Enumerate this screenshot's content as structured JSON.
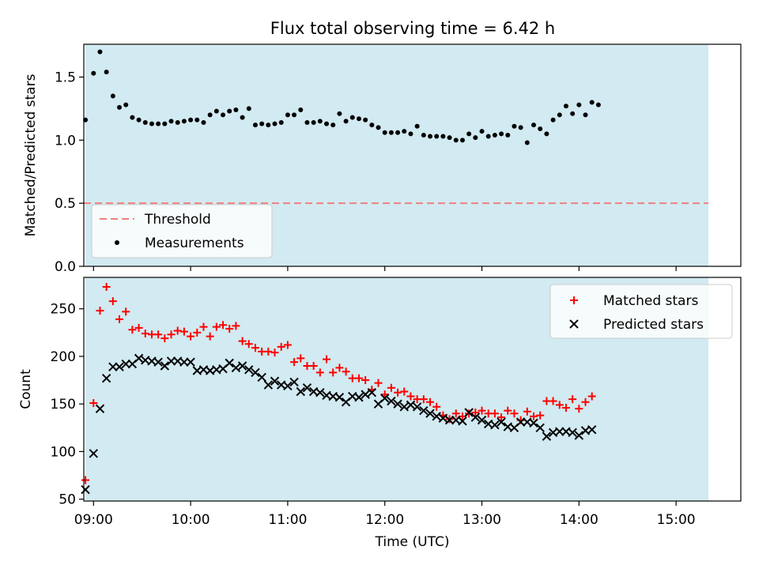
{
  "title": "Flux total observing time = 6.42 h",
  "colors": {
    "shade": "#add8e6",
    "threshold": "#f08080",
    "measurement": "#000000",
    "matched": "#ff0000",
    "predicted": "#000000"
  },
  "chart_data": [
    {
      "type": "scatter",
      "panel": "top",
      "xlabel": "",
      "ylabel": "Matched/Predicted stars",
      "xlim": [
        "08:54",
        "15:40"
      ],
      "ylim": [
        0,
        1.76
      ],
      "yticks": [
        "0.0",
        "0.5",
        "1.0",
        "1.5"
      ],
      "ytick_values": [
        0,
        0.5,
        1.0,
        1.5
      ],
      "grid": false,
      "shaded_span": [
        "08:55",
        "15:20"
      ],
      "legend_position": "lower-left",
      "threshold": {
        "name": "Threshold",
        "value": 0.5,
        "style": "dashed"
      },
      "series": [
        {
          "name": "Measurements",
          "marker": "dot",
          "points": [
            [
              "08:55",
              1.16
            ],
            [
              "09:00",
              1.53
            ],
            [
              "09:04",
              1.7
            ],
            [
              "09:08",
              1.54
            ],
            [
              "09:12",
              1.35
            ],
            [
              "09:16",
              1.26
            ],
            [
              "09:20",
              1.28
            ],
            [
              "09:24",
              1.18
            ],
            [
              "09:28",
              1.16
            ],
            [
              "09:32",
              1.14
            ],
            [
              "09:36",
              1.13
            ],
            [
              "09:40",
              1.13
            ],
            [
              "09:44",
              1.13
            ],
            [
              "09:48",
              1.15
            ],
            [
              "09:52",
              1.14
            ],
            [
              "09:56",
              1.15
            ],
            [
              "10:00",
              1.16
            ],
            [
              "10:04",
              1.16
            ],
            [
              "10:08",
              1.14
            ],
            [
              "10:12",
              1.2
            ],
            [
              "10:16",
              1.23
            ],
            [
              "10:20",
              1.2
            ],
            [
              "10:24",
              1.23
            ],
            [
              "10:28",
              1.24
            ],
            [
              "10:32",
              1.18
            ],
            [
              "10:36",
              1.25
            ],
            [
              "10:40",
              1.12
            ],
            [
              "10:44",
              1.13
            ],
            [
              "10:48",
              1.12
            ],
            [
              "10:52",
              1.13
            ],
            [
              "10:56",
              1.14
            ],
            [
              "11:00",
              1.2
            ],
            [
              "11:04",
              1.2
            ],
            [
              "11:08",
              1.24
            ],
            [
              "11:12",
              1.14
            ],
            [
              "11:16",
              1.14
            ],
            [
              "11:20",
              1.15
            ],
            [
              "11:24",
              1.13
            ],
            [
              "11:28",
              1.12
            ],
            [
              "11:32",
              1.21
            ],
            [
              "11:36",
              1.15
            ],
            [
              "11:40",
              1.18
            ],
            [
              "11:44",
              1.17
            ],
            [
              "11:48",
              1.16
            ],
            [
              "11:52",
              1.12
            ],
            [
              "11:56",
              1.1
            ],
            [
              "12:00",
              1.06
            ],
            [
              "12:04",
              1.06
            ],
            [
              "12:08",
              1.06
            ],
            [
              "12:12",
              1.07
            ],
            [
              "12:16",
              1.05
            ],
            [
              "12:20",
              1.11
            ],
            [
              "12:24",
              1.04
            ],
            [
              "12:28",
              1.03
            ],
            [
              "12:32",
              1.03
            ],
            [
              "12:36",
              1.03
            ],
            [
              "12:40",
              1.02
            ],
            [
              "12:44",
              1.0
            ],
            [
              "12:48",
              1.0
            ],
            [
              "12:52",
              1.05
            ],
            [
              "12:56",
              1.02
            ],
            [
              "13:00",
              1.07
            ],
            [
              "13:04",
              1.03
            ],
            [
              "13:08",
              1.04
            ],
            [
              "13:12",
              1.05
            ],
            [
              "13:16",
              1.04
            ],
            [
              "13:20",
              1.11
            ],
            [
              "13:24",
              1.1
            ],
            [
              "13:28",
              0.98
            ],
            [
              "13:32",
              1.12
            ],
            [
              "13:36",
              1.09
            ],
            [
              "13:40",
              1.05
            ],
            [
              "13:44",
              1.16
            ],
            [
              "13:48",
              1.2
            ],
            [
              "13:52",
              1.27
            ],
            [
              "13:56",
              1.21
            ],
            [
              "14:00",
              1.28
            ],
            [
              "14:04",
              1.2
            ],
            [
              "14:08",
              1.3
            ],
            [
              "14:12",
              1.28
            ]
          ]
        }
      ]
    },
    {
      "type": "scatter",
      "panel": "bottom",
      "xlabel": "Time (UTC)",
      "ylabel": "Count",
      "xlim": [
        "08:54",
        "15:40"
      ],
      "ylim": [
        48,
        283
      ],
      "xticks": [
        "09:00",
        "10:00",
        "11:00",
        "12:00",
        "13:00",
        "14:00",
        "15:00"
      ],
      "yticks": [
        "50",
        "100",
        "150",
        "200",
        "250"
      ],
      "ytick_values": [
        50,
        100,
        150,
        200,
        250
      ],
      "grid": false,
      "shaded_span": [
        "08:55",
        "15:20"
      ],
      "legend_position": "upper-right",
      "series": [
        {
          "name": "Matched stars",
          "marker": "plus",
          "points": [
            [
              "08:55",
              70
            ],
            [
              "09:00",
              151
            ],
            [
              "09:04",
              248
            ],
            [
              "09:08",
              273
            ],
            [
              "09:12",
              258
            ],
            [
              "09:16",
              239
            ],
            [
              "09:20",
              247
            ],
            [
              "09:24",
              228
            ],
            [
              "09:28",
              230
            ],
            [
              "09:32",
              224
            ],
            [
              "09:36",
              223
            ],
            [
              "09:40",
              223
            ],
            [
              "09:44",
              219
            ],
            [
              "09:48",
              223
            ],
            [
              "09:52",
              227
            ],
            [
              "09:56",
              226
            ],
            [
              "10:00",
              221
            ],
            [
              "10:04",
              225
            ],
            [
              "10:08",
              231
            ],
            [
              "10:12",
              221
            ],
            [
              "10:16",
              231
            ],
            [
              "10:20",
              233
            ],
            [
              "10:24",
              229
            ],
            [
              "10:28",
              232
            ],
            [
              "10:32",
              216
            ],
            [
              "10:36",
              213
            ],
            [
              "10:40",
              209
            ],
            [
              "10:44",
              205
            ],
            [
              "10:48",
              205
            ],
            [
              "10:52",
              204
            ],
            [
              "10:56",
              210
            ],
            [
              "11:00",
              212
            ],
            [
              "11:04",
              194
            ],
            [
              "11:08",
              198
            ],
            [
              "11:12",
              190
            ],
            [
              "11:16",
              190
            ],
            [
              "11:20",
              183
            ],
            [
              "11:24",
              197
            ],
            [
              "11:28",
              183
            ],
            [
              "11:32",
              188
            ],
            [
              "11:36",
              184
            ],
            [
              "11:40",
              177
            ],
            [
              "11:44",
              177
            ],
            [
              "11:48",
              175
            ],
            [
              "11:52",
              165
            ],
            [
              "11:56",
              172
            ],
            [
              "12:00",
              160
            ],
            [
              "12:04",
              167
            ],
            [
              "12:08",
              162
            ],
            [
              "12:12",
              163
            ],
            [
              "12:16",
              158
            ],
            [
              "12:20",
              155
            ],
            [
              "12:24",
              155
            ],
            [
              "12:28",
              152
            ],
            [
              "12:32",
              147
            ],
            [
              "12:36",
              138
            ],
            [
              "12:40",
              134
            ],
            [
              "12:44",
              140
            ],
            [
              "12:48",
              137
            ],
            [
              "12:52",
              140
            ],
            [
              "12:56",
              141
            ],
            [
              "13:00",
              143
            ],
            [
              "13:04",
              140
            ],
            [
              "13:08",
              140
            ],
            [
              "13:12",
              136
            ],
            [
              "13:16",
              143
            ],
            [
              "13:20",
              140
            ],
            [
              "13:24",
              133
            ],
            [
              "13:28",
              142
            ],
            [
              "13:32",
              137
            ],
            [
              "13:36",
              138
            ],
            [
              "13:40",
              153
            ],
            [
              "13:44",
              153
            ],
            [
              "13:48",
              149
            ],
            [
              "13:52",
              146
            ],
            [
              "13:56",
              155
            ],
            [
              "14:00",
              145
            ],
            [
              "14:04",
              152
            ],
            [
              "14:08",
              158
            ]
          ]
        },
        {
          "name": "Predicted stars",
          "marker": "x",
          "points": [
            [
              "08:55",
              60
            ],
            [
              "09:00",
              98
            ],
            [
              "09:04",
              145
            ],
            [
              "09:08",
              177
            ],
            [
              "09:12",
              189
            ],
            [
              "09:16",
              189
            ],
            [
              "09:20",
              192
            ],
            [
              "09:24",
              192
            ],
            [
              "09:28",
              198
            ],
            [
              "09:32",
              196
            ],
            [
              "09:36",
              195
            ],
            [
              "09:40",
              194
            ],
            [
              "09:44",
              190
            ],
            [
              "09:48",
              195
            ],
            [
              "09:52",
              195
            ],
            [
              "09:56",
              194
            ],
            [
              "10:00",
              194
            ],
            [
              "10:04",
              185
            ],
            [
              "10:08",
              186
            ],
            [
              "10:12",
              185
            ],
            [
              "10:16",
              186
            ],
            [
              "10:20",
              187
            ],
            [
              "10:24",
              193
            ],
            [
              "10:28",
              188
            ],
            [
              "10:32",
              190
            ],
            [
              "10:36",
              186
            ],
            [
              "10:40",
              183
            ],
            [
              "10:44",
              178
            ],
            [
              "10:48",
              170
            ],
            [
              "10:52",
              174
            ],
            [
              "10:56",
              170
            ],
            [
              "11:00",
              169
            ],
            [
              "11:04",
              173
            ],
            [
              "11:08",
              163
            ],
            [
              "11:12",
              167
            ],
            [
              "11:16",
              163
            ],
            [
              "11:20",
              162
            ],
            [
              "11:24",
              159
            ],
            [
              "11:28",
              158
            ],
            [
              "11:32",
              157
            ],
            [
              "11:36",
              152
            ],
            [
              "11:40",
              158
            ],
            [
              "11:44",
              157
            ],
            [
              "11:48",
              160
            ],
            [
              "11:52",
              162
            ],
            [
              "11:56",
              150
            ],
            [
              "12:00",
              156
            ],
            [
              "12:04",
              153
            ],
            [
              "12:08",
              150
            ],
            [
              "12:12",
              147
            ],
            [
              "12:16",
              149
            ],
            [
              "12:20",
              147
            ],
            [
              "12:24",
              143
            ],
            [
              "12:28",
              140
            ],
            [
              "12:32",
              137
            ],
            [
              "12:36",
              135
            ],
            [
              "12:40",
              133
            ],
            [
              "12:44",
              133
            ],
            [
              "12:48",
              132
            ],
            [
              "12:52",
              141
            ],
            [
              "12:56",
              136
            ],
            [
              "13:00",
              133
            ],
            [
              "13:04",
              129
            ],
            [
              "13:08",
              128
            ],
            [
              "13:12",
              131
            ],
            [
              "13:16",
              126
            ],
            [
              "13:20",
              125
            ],
            [
              "13:24",
              131
            ],
            [
              "13:28",
              131
            ],
            [
              "13:32",
              130
            ],
            [
              "13:36",
              125
            ],
            [
              "13:40",
              116
            ],
            [
              "13:44",
              120
            ],
            [
              "13:48",
              121
            ],
            [
              "13:52",
              121
            ],
            [
              "13:56",
              120
            ],
            [
              "14:00",
              117
            ],
            [
              "14:04",
              122
            ],
            [
              "14:08",
              123
            ]
          ]
        }
      ]
    }
  ]
}
